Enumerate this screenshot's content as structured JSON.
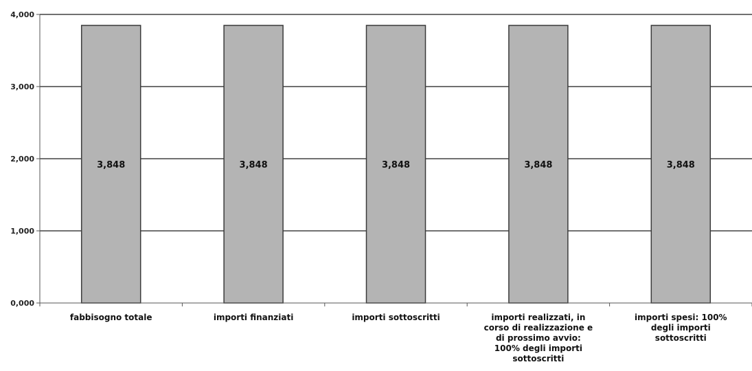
{
  "chart_data": {
    "type": "bar",
    "categories": [
      [
        "fabbisogno totale"
      ],
      [
        "importi finanziati"
      ],
      [
        "importi sottoscritti"
      ],
      [
        "importi realizzati, in",
        "corso di realizzazione e",
        "di prossimo avvio:",
        "100% degli importi",
        "sottoscritti"
      ],
      [
        "importi spesi: 100%",
        "degli importi",
        "sottoscritti"
      ]
    ],
    "values": [
      3848,
      3848,
      3848,
      3848,
      3848
    ],
    "data_labels": [
      "3,848",
      "3,848",
      "3,848",
      "3,848",
      "3,848"
    ],
    "yticks": [
      0,
      1000,
      2000,
      3000,
      4000
    ],
    "ytick_labels": [
      "0,000",
      "1,000",
      "2,000",
      "3,000",
      "4,000"
    ],
    "ylim": [
      0,
      4000
    ],
    "grid": true,
    "colors": {
      "bar_fill": "#b4b4b4",
      "bar_stroke": "#3a3a3a",
      "grid": "#1a1a1a",
      "axis": "#555555"
    }
  }
}
